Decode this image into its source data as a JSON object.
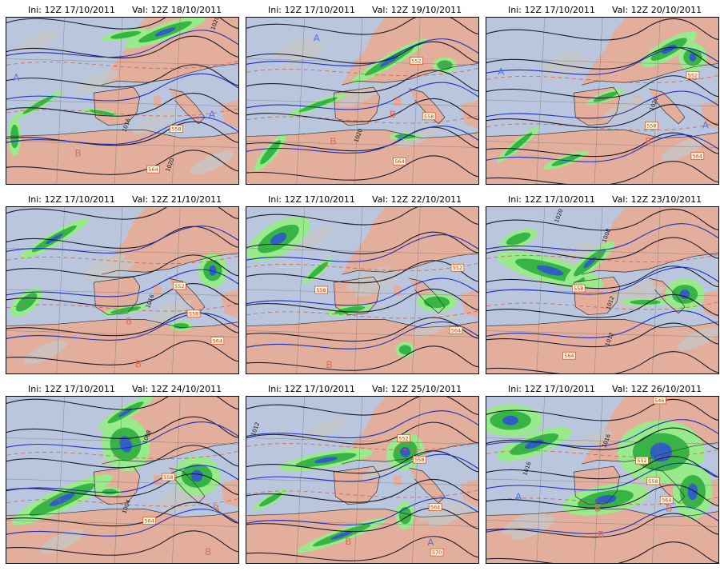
{
  "panels": [
    {
      "ini": "Ini: 12Z  17/10/2011",
      "val": "Val: 12Z  18/10/2011",
      "labels": [
        {
          "t": "A",
          "c": "blue"
        },
        {
          "t": "A",
          "c": "blue"
        },
        {
          "t": "B",
          "c": "red"
        }
      ],
      "boxes": [
        "558",
        "564"
      ],
      "isobars": [
        "1020",
        "1016",
        "1020"
      ]
    },
    {
      "ini": "Ini: 12Z  17/10/2011",
      "val": "Val: 12Z  19/10/2011",
      "labels": [
        {
          "t": "A",
          "c": "blue"
        },
        {
          "t": "B",
          "c": "red"
        },
        {
          "t": "A",
          "c": "blue"
        },
        {
          "t": "B",
          "c": "red"
        }
      ],
      "boxes": [
        "552",
        "558",
        "564"
      ],
      "isobars": [
        "1020"
      ]
    },
    {
      "ini": "Ini: 12Z  17/10/2011",
      "val": "Val: 12Z  20/10/2011",
      "labels": [
        {
          "t": "A",
          "c": "blue"
        },
        {
          "t": "A",
          "c": "blue"
        },
        {
          "t": "B",
          "c": "red"
        }
      ],
      "boxes": [
        "552",
        "558",
        "564"
      ],
      "isobars": [
        "1020"
      ]
    },
    {
      "ini": "Ini: 12Z  17/10/2011",
      "val": "Val: 12Z  21/10/2011",
      "labels": [
        {
          "t": "B",
          "c": "red"
        },
        {
          "t": "B",
          "c": "red"
        }
      ],
      "boxes": [
        "552",
        "558",
        "564"
      ],
      "isobars": [
        "1016"
      ]
    },
    {
      "ini": "Ini: 12Z  17/10/2011",
      "val": "Val: 12Z  22/10/2011",
      "labels": [
        {
          "t": "B",
          "c": "red"
        }
      ],
      "boxes": [
        "552",
        "558",
        "564"
      ],
      "isobars": []
    },
    {
      "ini": "Ini: 12Z  17/10/2011",
      "val": "Val: 12Z  23/10/2011",
      "labels": [],
      "boxes": [
        "558",
        "564"
      ],
      "isobars": [
        "1008",
        "1012",
        "1012",
        "1020"
      ]
    },
    {
      "ini": "Ini: 12Z  17/10/2011",
      "val": "Val: 12Z  24/10/2011",
      "labels": [
        {
          "t": "B",
          "c": "red"
        },
        {
          "t": "B",
          "c": "red"
        }
      ],
      "boxes": [
        "558",
        "564"
      ],
      "isobars": [
        "1008",
        "1004"
      ]
    },
    {
      "ini": "Ini: 12Z  17/10/2011",
      "val": "Val: 12Z  25/10/2011",
      "labels": [
        {
          "t": "A",
          "c": "blue"
        },
        {
          "t": "B",
          "c": "red"
        }
      ],
      "boxes": [
        "552",
        "558",
        "564",
        "570"
      ],
      "isobars": [
        "1012"
      ]
    },
    {
      "ini": "Ini: 12Z  17/10/2011",
      "val": "Val: 12Z  26/10/2011",
      "labels": [
        {
          "t": "A",
          "c": "blue"
        },
        {
          "t": "B",
          "c": "red"
        },
        {
          "t": "B",
          "c": "red"
        },
        {
          "t": "B",
          "c": "red"
        }
      ],
      "boxes": [
        "546",
        "552",
        "558",
        "564"
      ],
      "isobars": [
        "1016",
        "1016"
      ]
    }
  ],
  "colors": {
    "land": "#e3ae9b",
    "sea": "#b9c6de",
    "precip_light": "#98ea8a",
    "precip_mid": "#36b545",
    "precip_heavy": "#2f5fc4",
    "cloud": "#c5c5c5",
    "isobar": "#1a1a2e",
    "geopot": "#1c2fbf",
    "thickness": "#d0604a",
    "high": "#5577dd",
    "low": "#e06a55"
  }
}
